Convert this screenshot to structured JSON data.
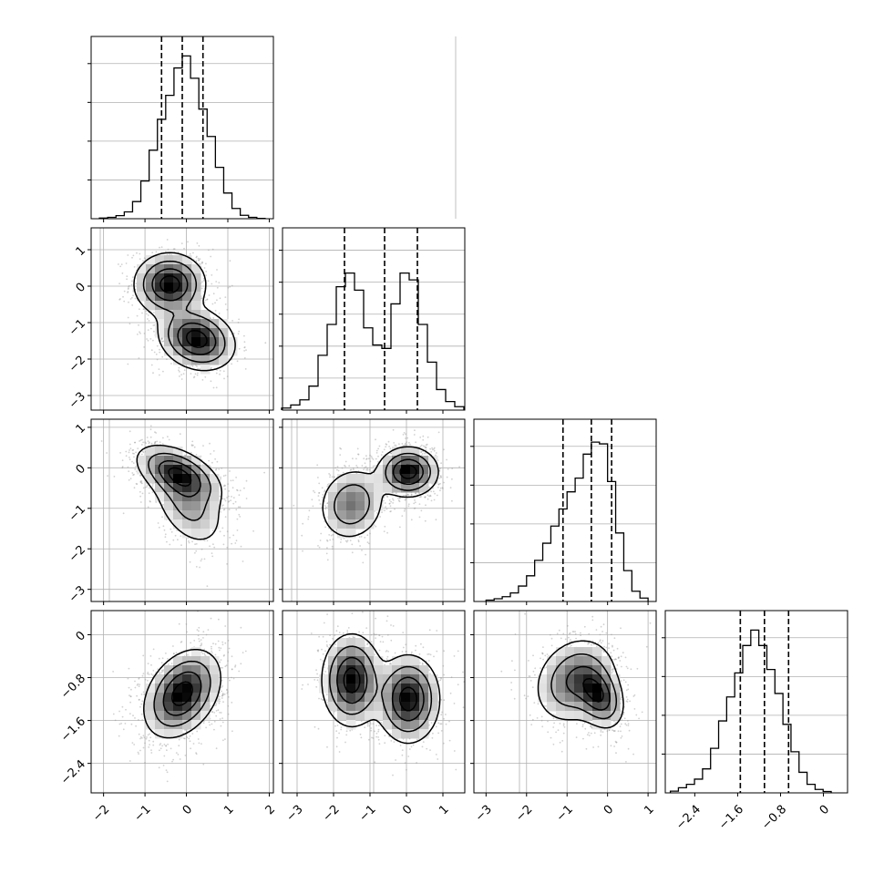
{
  "figure": {
    "type": "corner-plot",
    "background": "#ffffff",
    "grid": true,
    "colors": {
      "axes": "#000000",
      "grid": "#b0b0b0",
      "scatter": "#9a9a9a",
      "density_dark": "#000000",
      "density_light": "#ffffff"
    }
  },
  "chart_data": [
    {
      "type": "histogram",
      "name": "hist-p0",
      "row": 0,
      "col": 0,
      "xlim": [
        -2.3,
        2.1
      ],
      "bins": [
        [
          -2.0,
          0.004
        ],
        [
          -1.8,
          0.008
        ],
        [
          -1.6,
          0.018
        ],
        [
          -1.4,
          0.04
        ],
        [
          -1.2,
          0.1
        ],
        [
          -1.0,
          0.22
        ],
        [
          -0.8,
          0.4
        ],
        [
          -0.6,
          0.58
        ],
        [
          -0.4,
          0.72
        ],
        [
          -0.2,
          0.88
        ],
        [
          0.0,
          0.95
        ],
        [
          0.2,
          0.82
        ],
        [
          0.4,
          0.64
        ],
        [
          0.6,
          0.48
        ],
        [
          0.8,
          0.3
        ],
        [
          1.0,
          0.15
        ],
        [
          1.2,
          0.06
        ],
        [
          1.4,
          0.02
        ],
        [
          1.6,
          0.008
        ],
        [
          1.8,
          0.002
        ]
      ],
      "quantiles": [
        -0.6,
        -0.1,
        0.4
      ],
      "x_ticks": [
        -2,
        -1,
        0,
        1,
        2
      ],
      "y_ticks_count": 4
    },
    {
      "type": "histogram",
      "name": "hist-p1",
      "row": 1,
      "col": 1,
      "xlim": [
        -3.4,
        1.6
      ],
      "bins": [
        [
          -3.3,
          0.012
        ],
        [
          -3.05,
          0.03
        ],
        [
          -2.8,
          0.06
        ],
        [
          -2.55,
          0.14
        ],
        [
          -2.3,
          0.32
        ],
        [
          -2.05,
          0.5
        ],
        [
          -1.8,
          0.72
        ],
        [
          -1.55,
          0.8
        ],
        [
          -1.3,
          0.7
        ],
        [
          -1.05,
          0.48
        ],
        [
          -0.8,
          0.38
        ],
        [
          -0.55,
          0.36
        ],
        [
          -0.3,
          0.62
        ],
        [
          -0.05,
          0.8
        ],
        [
          0.2,
          0.76
        ],
        [
          0.45,
          0.5
        ],
        [
          0.7,
          0.28
        ],
        [
          0.95,
          0.12
        ],
        [
          1.2,
          0.05
        ],
        [
          1.45,
          0.02
        ]
      ],
      "quantiles": [
        -1.7,
        -0.6,
        0.3
      ],
      "x_ticks": [
        -3,
        -2,
        -1,
        0,
        1
      ],
      "y_ticks_count": 5
    },
    {
      "type": "histogram",
      "name": "hist-p2",
      "row": 2,
      "col": 2,
      "xlim": [
        -3.3,
        1.2
      ],
      "bins": [
        [
          -2.9,
          0.008
        ],
        [
          -2.7,
          0.016
        ],
        [
          -2.5,
          0.028
        ],
        [
          -2.3,
          0.05
        ],
        [
          -2.1,
          0.09
        ],
        [
          -1.9,
          0.15
        ],
        [
          -1.7,
          0.24
        ],
        [
          -1.5,
          0.34
        ],
        [
          -1.3,
          0.44
        ],
        [
          -1.1,
          0.54
        ],
        [
          -0.9,
          0.64
        ],
        [
          -0.7,
          0.72
        ],
        [
          -0.5,
          0.86
        ],
        [
          -0.3,
          0.93
        ],
        [
          -0.1,
          0.92
        ],
        [
          0.1,
          0.7
        ],
        [
          0.3,
          0.4
        ],
        [
          0.5,
          0.18
        ],
        [
          0.7,
          0.06
        ],
        [
          0.9,
          0.02
        ]
      ],
      "quantiles": [
        -1.1,
        -0.4,
        0.1
      ],
      "x_ticks": [
        -3,
        -2,
        -1,
        0,
        1
      ],
      "y_ticks_count": 4
    },
    {
      "type": "histogram",
      "name": "hist-p3",
      "row": 3,
      "col": 3,
      "xlim": [
        -2.95,
        0.45
      ],
      "bins": [
        [
          -2.78,
          0.01
        ],
        [
          -2.63,
          0.03
        ],
        [
          -2.48,
          0.05
        ],
        [
          -2.33,
          0.08
        ],
        [
          -2.18,
          0.14
        ],
        [
          -2.03,
          0.26
        ],
        [
          -1.88,
          0.42
        ],
        [
          -1.73,
          0.56
        ],
        [
          -1.58,
          0.7
        ],
        [
          -1.43,
          0.86
        ],
        [
          -1.28,
          0.95
        ],
        [
          -1.13,
          0.86
        ],
        [
          -0.98,
          0.72
        ],
        [
          -0.83,
          0.58
        ],
        [
          -0.68,
          0.4
        ],
        [
          -0.53,
          0.24
        ],
        [
          -0.38,
          0.12
        ],
        [
          -0.23,
          0.05
        ],
        [
          -0.08,
          0.02
        ],
        [
          0.07,
          0.008
        ]
      ],
      "quantiles": [
        -1.55,
        -1.1,
        -0.65
      ],
      "x_ticks": [
        -2.4,
        -1.6,
        -0.8,
        0.0
      ],
      "y_ticks_count": 4
    },
    {
      "type": "2d-density",
      "name": "density-p0-p1",
      "row": 1,
      "col": 0,
      "xlim": [
        -2.3,
        2.1
      ],
      "ylim": [
        -3.4,
        1.6
      ],
      "components": [
        {
          "mx": -0.4,
          "my": 0.05,
          "sx": 0.42,
          "sy": 0.42,
          "r": 0.0,
          "w": 1.0
        },
        {
          "mx": 0.25,
          "my": -1.45,
          "sx": 0.45,
          "sy": 0.42,
          "r": -0.2,
          "w": 1.0
        }
      ],
      "y_ticks": [
        -3,
        -2,
        -1,
        0,
        1
      ]
    },
    {
      "type": "2d-density",
      "name": "density-p0-p2",
      "row": 2,
      "col": 0,
      "xlim": [
        -2.3,
        2.1
      ],
      "ylim": [
        -3.3,
        1.2
      ],
      "components": [
        {
          "mx": -0.2,
          "my": -0.15,
          "sx": 0.5,
          "sy": 0.35,
          "r": -0.5,
          "w": 1.4
        },
        {
          "mx": 0.05,
          "my": -0.9,
          "sx": 0.45,
          "sy": 0.55,
          "r": -0.4,
          "w": 0.7
        }
      ],
      "y_ticks": [
        -3,
        -2,
        -1,
        0,
        1
      ]
    },
    {
      "type": "2d-density",
      "name": "density-p1-p2",
      "row": 2,
      "col": 1,
      "xlim": [
        -3.4,
        1.6
      ],
      "ylim": [
        -3.3,
        1.2
      ],
      "components": [
        {
          "mx": 0.05,
          "my": -0.1,
          "sx": 0.4,
          "sy": 0.3,
          "r": 0.0,
          "w": 1.6
        },
        {
          "mx": -1.5,
          "my": -0.9,
          "sx": 0.45,
          "sy": 0.45,
          "r": 0.1,
          "w": 0.9
        }
      ]
    },
    {
      "type": "2d-density",
      "name": "density-p0-p3",
      "row": 3,
      "col": 0,
      "xlim": [
        -2.3,
        2.1
      ],
      "ylim": [
        -2.95,
        0.45
      ],
      "components": [
        {
          "mx": -0.1,
          "my": -1.1,
          "sx": 0.45,
          "sy": 0.4,
          "r": 0.35,
          "w": 1.0
        }
      ],
      "y_ticks": [
        -2.4,
        -1.6,
        -0.8,
        0.0
      ]
    },
    {
      "type": "2d-density",
      "name": "density-p1-p3",
      "row": 3,
      "col": 1,
      "xlim": [
        -3.4,
        1.6
      ],
      "ylim": [
        -2.95,
        0.45
      ],
      "components": [
        {
          "mx": -1.5,
          "my": -0.85,
          "sx": 0.4,
          "sy": 0.42,
          "r": 0.0,
          "w": 1.0
        },
        {
          "mx": 0.05,
          "my": -1.2,
          "sx": 0.42,
          "sy": 0.4,
          "r": 0.0,
          "w": 1.0
        }
      ]
    },
    {
      "type": "2d-density",
      "name": "density-p2-p3",
      "row": 3,
      "col": 2,
      "xlim": [
        -3.3,
        1.2
      ],
      "ylim": [
        -2.95,
        0.45
      ],
      "components": [
        {
          "mx": -0.2,
          "my": -1.15,
          "sx": 0.3,
          "sy": 0.3,
          "r": -0.3,
          "w": 1.2
        },
        {
          "mx": -0.8,
          "my": -0.85,
          "sx": 0.5,
          "sy": 0.4,
          "r": 0.2,
          "w": 1.0
        }
      ]
    }
  ]
}
